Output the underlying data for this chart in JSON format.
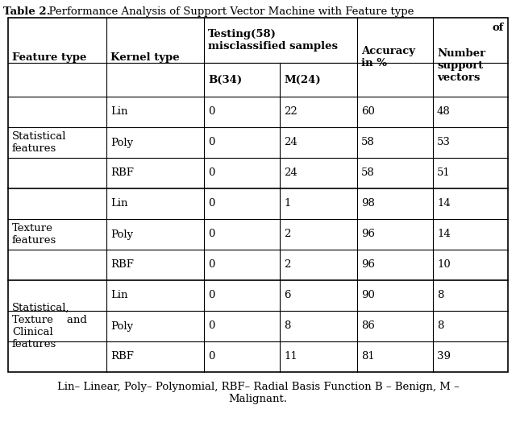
{
  "title_bold": "Table 2.",
  "title_rest": "  Performance Analysis of Support Vector Machine with Feature type",
  "footer": "Lin– Linear, Poly– Polynomial, RBF– Radial Basis Function B – Benign, M –\nMalignant.",
  "rows": [
    [
      "Statistical\nfeatures",
      "Lin",
      "0",
      "22",
      "60",
      "48"
    ],
    [
      "",
      "Poly",
      "0",
      "24",
      "58",
      "53"
    ],
    [
      "",
      "RBF",
      "0",
      "24",
      "58",
      "51"
    ],
    [
      "Texture\nfeatures",
      "Lin",
      "0",
      "1",
      "98",
      "14"
    ],
    [
      "",
      "Poly",
      "0",
      "2",
      "96",
      "14"
    ],
    [
      "",
      "RBF",
      "0",
      "2",
      "96",
      "10"
    ],
    [
      "Statistical,\nTexture    and\nClinical\nfeatures",
      "Lin",
      "0",
      "6",
      "90",
      "8"
    ],
    [
      "",
      "Poly",
      "0",
      "8",
      "86",
      "8"
    ],
    [
      "",
      "RBF",
      "0",
      "11",
      "81",
      "39"
    ]
  ],
  "figsize": [
    6.4,
    5.34
  ],
  "dpi": 100
}
